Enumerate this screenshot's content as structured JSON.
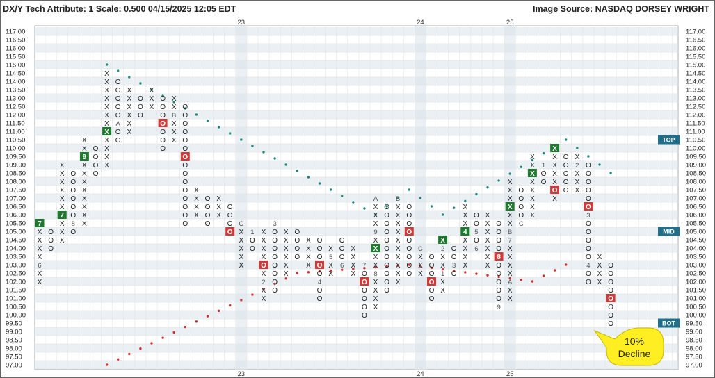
{
  "chart_data": {
    "type": "point-and-figure",
    "title": "DX/Y Tech Attribute: 1 Scale: 0.500 04/15/2025 12:05 EDT",
    "source": "Image Source: NASDAQ DORSEY WRIGHT",
    "box_size": 0.5,
    "ylim": [
      97.0,
      117.0
    ],
    "price_labels": [
      "117.00",
      "116.50",
      "116.00",
      "115.50",
      "115.00",
      "114.50",
      "114.00",
      "113.50",
      "113.00",
      "112.50",
      "112.00",
      "111.50",
      "111.00",
      "110.50",
      "110.00",
      "109.50",
      "109.00",
      "108.50",
      "108.00",
      "107.50",
      "107.00",
      "106.50",
      "106.00",
      "105.50",
      "105.00",
      "104.50",
      "104.00",
      "103.50",
      "103.00",
      "102.50",
      "102.00",
      "101.50",
      "101.00",
      "100.50",
      "100.00",
      "99.50",
      "99.00",
      "98.50",
      "98.00",
      "97.50",
      "97.00"
    ],
    "year_labels": [
      {
        "text": "23",
        "col": 18
      },
      {
        "text": "24",
        "col": 34
      },
      {
        "text": "25",
        "col": 42
      }
    ],
    "columns": [
      {
        "t": "X",
        "lo": 102.0,
        "hi": 105.5,
        "marks": {
          "105.5": "7",
          "103.0": "6"
        },
        "boxed": {
          "105.5": "X"
        }
      },
      {
        "t": "O",
        "lo": 104.0,
        "hi": 105.0
      },
      {
        "t": "X",
        "lo": 104.5,
        "hi": 109.0,
        "marks": {
          "106.0": "7"
        },
        "boxed": {
          "106.0": "X"
        }
      },
      {
        "t": "O",
        "lo": 105.0,
        "hi": 108.5,
        "marks": {
          "105.5": "8"
        }
      },
      {
        "t": "X",
        "lo": 105.5,
        "hi": 110.5,
        "marks": {
          "109.5": "9"
        },
        "boxed": {
          "109.5": "X"
        }
      },
      {
        "t": "O",
        "lo": 108.5,
        "hi": 110.0
      },
      {
        "t": "X",
        "lo": 109.0,
        "hi": 114.5,
        "marks": {
          "111.0": "X"
        },
        "boxed": {
          "111.0": "X"
        }
      },
      {
        "t": "O",
        "lo": 110.5,
        "hi": 114.0,
        "marks": {
          "111.5": "A"
        }
      },
      {
        "t": "X",
        "lo": 111.0,
        "hi": 113.5
      },
      {
        "t": "O",
        "lo": 112.0,
        "hi": 113.0
      },
      {
        "t": "X",
        "lo": 112.5,
        "hi": 113.5
      },
      {
        "t": "O",
        "lo": 110.0,
        "hi": 113.0,
        "marks": {
          "111.5": "O"
        },
        "boxed": {
          "111.5": "O"
        }
      },
      {
        "t": "X",
        "lo": 110.5,
        "hi": 113.0,
        "marks": {
          "112.0": "B"
        }
      },
      {
        "t": "O",
        "lo": 105.5,
        "hi": 112.5,
        "marks": {
          "109.5": "O"
        },
        "boxed": {
          "109.5": "O"
        }
      },
      {
        "t": "X",
        "lo": 106.0,
        "hi": 107.5
      },
      {
        "t": "O",
        "lo": 105.5,
        "hi": 107.0
      },
      {
        "t": "X",
        "lo": 106.0,
        "hi": 107.0
      },
      {
        "t": "O",
        "lo": 105.0,
        "hi": 106.5,
        "marks": {
          "105.0": "O"
        },
        "boxed": {
          "105.0": "O"
        }
      },
      {
        "t": "X",
        "lo": 103.0,
        "hi": 105.5,
        "marks": {
          "105.5": "C"
        }
      },
      {
        "t": "O",
        "lo": 104.0,
        "hi": 105.0,
        "marks": {
          "105.0": "1"
        }
      },
      {
        "t": "X",
        "lo": 101.0,
        "hi": 105.0,
        "marks": {
          "103.0": "O",
          "102.0": "2"
        },
        "boxed": {
          "103.0": "O"
        }
      },
      {
        "t": "O",
        "lo": 101.5,
        "hi": 105.5,
        "marks": {
          "105.5": "3"
        }
      },
      {
        "t": "X",
        "lo": 102.5,
        "hi": 105.0
      },
      {
        "t": "O",
        "lo": 103.5,
        "hi": 105.0
      },
      {
        "t": "X",
        "lo": 103.0,
        "hi": 104.5
      },
      {
        "t": "O",
        "lo": 101.0,
        "hi": 104.5,
        "marks": {
          "103.0": "O",
          "102.0": "4"
        },
        "boxed": {
          "103.0": "O"
        }
      },
      {
        "t": "X",
        "lo": 102.5,
        "hi": 104.0,
        "marks": {
          "103.5": "5"
        }
      },
      {
        "t": "O",
        "lo": 103.0,
        "hi": 104.5,
        "marks": {
          "103.0": "6"
        }
      },
      {
        "t": "X",
        "lo": 102.5,
        "hi": 104.0
      },
      {
        "t": "O",
        "lo": 100.0,
        "hi": 103.0,
        "marks": {
          "103.0": "7",
          "102.0": "O"
        },
        "boxed": {
          "102.0": "O"
        }
      },
      {
        "t": "X",
        "lo": 100.5,
        "hi": 107.0,
        "marks": {
          "107.0": "A",
          "105.0": "9",
          "104.0": "X",
          "102.5": "8"
        },
        "boxed": {
          "104.0": "X"
        }
      },
      {
        "t": "O",
        "lo": 101.5,
        "hi": 106.5
      },
      {
        "t": "X",
        "lo": 102.0,
        "hi": 107.0,
        "marks": {
          "107.0": "B"
        }
      },
      {
        "t": "O",
        "lo": 102.5,
        "hi": 106.5,
        "marks": {
          "105.0": "O"
        },
        "boxed": {
          "105.0": "O"
        }
      },
      {
        "t": "X",
        "lo": 102.5,
        "hi": 104.0,
        "marks": {
          "104.0": "C"
        }
      },
      {
        "t": "O",
        "lo": 101.0,
        "hi": 103.5,
        "marks": {
          "102.0": "O"
        },
        "boxed": {
          "102.0": "O"
        }
      },
      {
        "t": "X",
        "lo": 101.5,
        "hi": 104.5,
        "marks": {
          "104.5": "X",
          "104.0": "2",
          "102.5": "1"
        },
        "boxed": {
          "104.5": "X"
        }
      },
      {
        "t": "O",
        "lo": 102.5,
        "hi": 104.0,
        "marks": {
          "103.0": "3"
        }
      },
      {
        "t": "X",
        "lo": 103.0,
        "hi": 106.5,
        "marks": {
          "105.0": "4"
        },
        "boxed": {
          "105.0": "X"
        }
      },
      {
        "t": "O",
        "lo": 104.0,
        "hi": 106.0,
        "marks": {
          "105.0": "5",
          "104.0": "6"
        }
      },
      {
        "t": "X",
        "lo": 103.0,
        "hi": 106.0
      },
      {
        "t": "O",
        "lo": 100.5,
        "hi": 105.5,
        "marks": {
          "103.5": "8",
          "100.5": "9"
        },
        "boxed": {
          "103.5": "O"
        }
      },
      {
        "t": "X",
        "lo": 101.0,
        "hi": 108.0,
        "marks": {
          "106.5": "X",
          "105.0": "B",
          "104.5": "7",
          "102.0": "A"
        },
        "boxed": {
          "106.5": "X"
        }
      },
      {
        "t": "O",
        "lo": 105.5,
        "hi": 107.5,
        "marks": {
          "105.5": "C"
        }
      },
      {
        "t": "X",
        "lo": 106.0,
        "hi": 109.5,
        "marks": {
          "108.5": "X"
        },
        "boxed": {
          "108.5": "X"
        }
      },
      {
        "t": "O",
        "lo": 108.0,
        "hi": 109.0,
        "marks": {
          "109.0": "1"
        }
      },
      {
        "t": "X",
        "lo": 107.0,
        "hi": 110.0,
        "marks": {
          "110.0": "X",
          "107.5": "O"
        },
        "boxed": {
          "110.0": "X",
          "107.5": "O"
        }
      },
      {
        "t": "O",
        "lo": 107.5,
        "hi": 109.5
      },
      {
        "t": "X",
        "lo": 107.5,
        "hi": 109.5,
        "marks": {
          "109.0": "2"
        }
      },
      {
        "t": "O",
        "lo": 102.0,
        "hi": 109.0,
        "marks": {
          "106.5": "O",
          "106.0": "3",
          "103.0": "4"
        },
        "boxed": {
          "106.5": "O"
        }
      },
      {
        "t": "X",
        "lo": 102.0,
        "hi": 103.5
      },
      {
        "t": "O",
        "lo": 99.5,
        "hi": 103.0,
        "marks": {
          "101.0": "O"
        },
        "boxed": {
          "101.0": "O"
        }
      }
    ],
    "lines": [
      {
        "kind": "bullish-support",
        "color": "#d32f2f",
        "points": [
          [
            6,
            97.0
          ],
          [
            23,
            102.5
          ],
          [
            33,
            103.0
          ],
          [
            44,
            102.0
          ],
          [
            47,
            103.0
          ]
        ]
      },
      {
        "kind": "bearish-resistance",
        "color": "#1a8a80",
        "points": [
          [
            6,
            115.0
          ],
          [
            18,
            110.5
          ],
          [
            30,
            106.0
          ],
          [
            33,
            107.5
          ],
          [
            36,
            106.0
          ],
          [
            47,
            110.5
          ],
          [
            51,
            108.5
          ]
        ]
      }
    ],
    "tags": [
      {
        "text": "TOP",
        "price": 110.5
      },
      {
        "text": "MID",
        "price": 105.0
      },
      {
        "text": "BOT",
        "price": 99.5
      }
    ],
    "annotation": {
      "lines": [
        "10%",
        "Decline"
      ],
      "fill": "#ffee22"
    },
    "colors": {
      "x": "#222222",
      "o": "#222222",
      "box_x": "#1e7a2e",
      "box_o": "#d23a3a",
      "grid": "#e6e6e6",
      "band": "#d9e3eb",
      "tag": "#1f6f8b"
    }
  }
}
